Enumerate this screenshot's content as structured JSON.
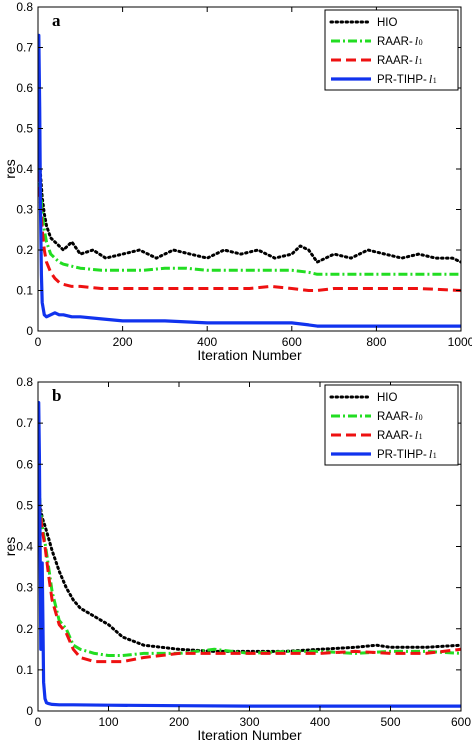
{
  "colors": {
    "HIO": "#000000",
    "RAAR-l0": "#22dd22",
    "RAAR-l1": "#ee1111",
    "PR-TIHP-l1": "#1133ee"
  },
  "chart_data": [
    {
      "type": "line",
      "panel_label": "a",
      "xlabel": "Iteration Number",
      "ylabel": "res",
      "xlim": [
        0,
        1000
      ],
      "ylim": [
        0,
        0.8
      ],
      "xticks": [
        "0",
        "200",
        "400",
        "600",
        "800",
        "1000"
      ],
      "yticks": [
        "0",
        "0.1",
        "0.2",
        "0.3",
        "0.4",
        "0.5",
        "0.6",
        "0.7",
        "0.8"
      ],
      "legend_position": "top-right",
      "series": [
        {
          "name": "HIO",
          "legend_main": "HIO",
          "legend_sub": "",
          "x": [
            0,
            5,
            10,
            15,
            20,
            30,
            40,
            50,
            60,
            80,
            100,
            130,
            160,
            200,
            240,
            280,
            320,
            360,
            400,
            440,
            480,
            520,
            560,
            600,
            620,
            640,
            660,
            700,
            740,
            780,
            820,
            860,
            900,
            940,
            980,
            1000
          ],
          "y": [
            0.41,
            0.4,
            0.33,
            0.29,
            0.26,
            0.23,
            0.22,
            0.21,
            0.2,
            0.22,
            0.19,
            0.2,
            0.18,
            0.19,
            0.2,
            0.18,
            0.2,
            0.19,
            0.18,
            0.2,
            0.19,
            0.2,
            0.18,
            0.19,
            0.21,
            0.2,
            0.17,
            0.19,
            0.18,
            0.2,
            0.19,
            0.18,
            0.19,
            0.18,
            0.18,
            0.17
          ]
        },
        {
          "name": "RAAR-l0",
          "legend_main": "RAAR-",
          "legend_sub": "0",
          "x": [
            0,
            5,
            10,
            15,
            20,
            30,
            40,
            50,
            60,
            80,
            100,
            150,
            200,
            250,
            300,
            350,
            400,
            450,
            500,
            550,
            600,
            640,
            660,
            700,
            800,
            900,
            1000
          ],
          "y": [
            0.45,
            0.36,
            0.29,
            0.25,
            0.22,
            0.19,
            0.18,
            0.17,
            0.165,
            0.16,
            0.155,
            0.15,
            0.15,
            0.15,
            0.155,
            0.155,
            0.15,
            0.15,
            0.15,
            0.15,
            0.15,
            0.145,
            0.14,
            0.14,
            0.14,
            0.14,
            0.14
          ]
        },
        {
          "name": "RAAR-l1",
          "legend_main": "RAAR-",
          "legend_sub": "1",
          "x": [
            0,
            5,
            10,
            15,
            20,
            30,
            40,
            50,
            60,
            80,
            100,
            150,
            200,
            300,
            400,
            500,
            550,
            600,
            640,
            660,
            700,
            800,
            900,
            1000
          ],
          "y": [
            0.43,
            0.33,
            0.25,
            0.2,
            0.17,
            0.145,
            0.13,
            0.12,
            0.115,
            0.11,
            0.11,
            0.105,
            0.105,
            0.105,
            0.105,
            0.105,
            0.11,
            0.105,
            0.1,
            0.1,
            0.105,
            0.105,
            0.105,
            0.1
          ]
        },
        {
          "name": "PR-TIHP-l1",
          "legend_main": "PR-TIHP-",
          "legend_sub": "1",
          "x": [
            0,
            2,
            4,
            6,
            8,
            10,
            15,
            20,
            30,
            40,
            50,
            60,
            80,
            100,
            150,
            200,
            300,
            400,
            500,
            600,
            640,
            660,
            700,
            800,
            900,
            1000
          ],
          "y": [
            0.73,
            0.73,
            0.55,
            0.3,
            0.14,
            0.07,
            0.04,
            0.035,
            0.04,
            0.045,
            0.04,
            0.04,
            0.035,
            0.035,
            0.03,
            0.025,
            0.025,
            0.02,
            0.02,
            0.02,
            0.015,
            0.012,
            0.012,
            0.012,
            0.012,
            0.012
          ]
        }
      ]
    },
    {
      "type": "line",
      "panel_label": "b",
      "xlabel": "Iteration Number",
      "ylabel": "res",
      "xlim": [
        0,
        600
      ],
      "ylim": [
        0,
        0.8
      ],
      "xticks": [
        "0",
        "100",
        "200",
        "300",
        "400",
        "500",
        "600"
      ],
      "yticks": [
        "0",
        "0.1",
        "0.2",
        "0.3",
        "0.4",
        "0.5",
        "0.6",
        "0.7",
        "0.8"
      ],
      "legend_position": "top-right",
      "series": [
        {
          "name": "HIO",
          "legend_main": "HIO",
          "legend_sub": "",
          "x": [
            0,
            3,
            6,
            10,
            15,
            20,
            30,
            40,
            50,
            60,
            80,
            100,
            120,
            150,
            200,
            250,
            300,
            350,
            400,
            450,
            480,
            500,
            550,
            600
          ],
          "y": [
            0.55,
            0.5,
            0.47,
            0.45,
            0.42,
            0.39,
            0.34,
            0.3,
            0.27,
            0.25,
            0.23,
            0.21,
            0.18,
            0.16,
            0.15,
            0.145,
            0.145,
            0.145,
            0.15,
            0.155,
            0.16,
            0.155,
            0.155,
            0.16
          ]
        },
        {
          "name": "RAAR-l0",
          "legend_main": "RAAR-",
          "legend_sub": "0",
          "x": [
            0,
            3,
            6,
            10,
            15,
            20,
            30,
            40,
            50,
            60,
            80,
            100,
            120,
            150,
            200,
            250,
            300,
            350,
            400,
            450,
            500,
            550,
            600
          ],
          "y": [
            0.6,
            0.5,
            0.45,
            0.41,
            0.35,
            0.29,
            0.22,
            0.2,
            0.16,
            0.15,
            0.14,
            0.135,
            0.135,
            0.14,
            0.14,
            0.15,
            0.14,
            0.145,
            0.145,
            0.14,
            0.145,
            0.145,
            0.14
          ]
        },
        {
          "name": "RAAR-l1",
          "legend_main": "RAAR-",
          "legend_sub": "1",
          "x": [
            0,
            3,
            6,
            10,
            15,
            20,
            30,
            40,
            50,
            60,
            80,
            100,
            120,
            150,
            200,
            250,
            300,
            350,
            400,
            450,
            500,
            550,
            600
          ],
          "y": [
            0.58,
            0.49,
            0.44,
            0.4,
            0.33,
            0.27,
            0.21,
            0.19,
            0.15,
            0.13,
            0.12,
            0.12,
            0.12,
            0.13,
            0.14,
            0.14,
            0.14,
            0.14,
            0.14,
            0.145,
            0.14,
            0.14,
            0.15
          ]
        },
        {
          "name": "PR-TIHP-l1",
          "legend_main": "PR-TIHP-",
          "legend_sub": "1",
          "x": [
            0,
            1,
            2,
            3,
            4,
            5,
            6,
            7,
            8,
            10,
            12,
            15,
            20,
            30,
            50,
            100,
            200,
            300,
            400,
            500,
            600
          ],
          "y": [
            0.75,
            0.75,
            0.62,
            0.4,
            0.15,
            0.2,
            0.36,
            0.22,
            0.07,
            0.03,
            0.02,
            0.018,
            0.016,
            0.015,
            0.015,
            0.014,
            0.013,
            0.012,
            0.012,
            0.012,
            0.012
          ]
        }
      ]
    }
  ]
}
